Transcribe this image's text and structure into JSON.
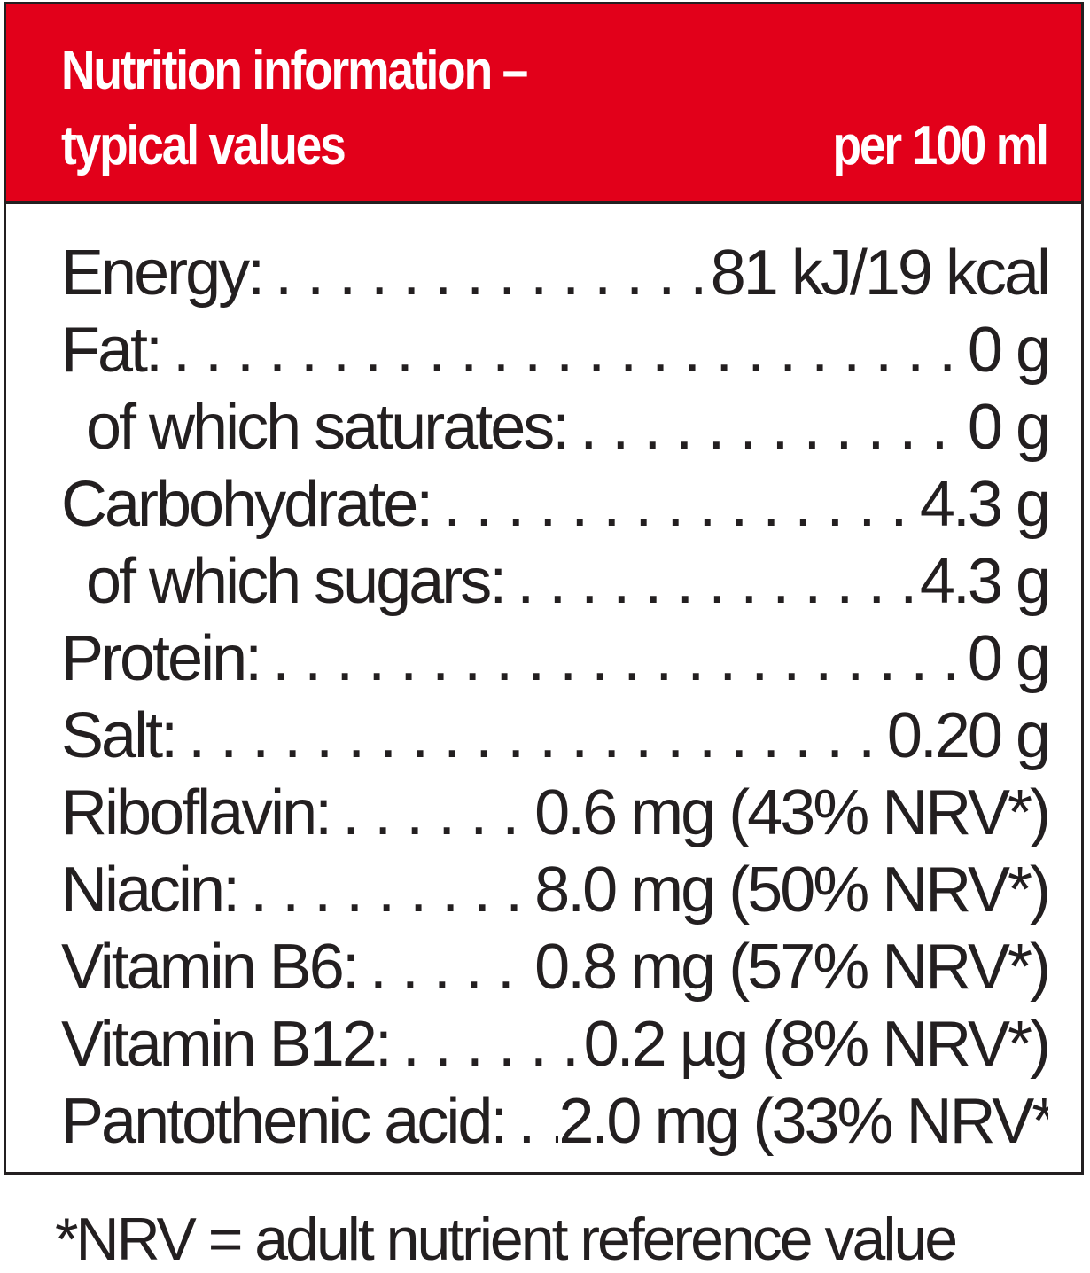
{
  "header": {
    "title_line1": "Nutrition information –",
    "title_line2": "typical values",
    "per": "per 100 ml"
  },
  "rows": [
    {
      "label": "Energy:",
      "value": "81 kJ/19 kcal"
    },
    {
      "label": "Fat:",
      "value": "0 g"
    },
    {
      "label": "of which saturates:",
      "value": "0 g"
    },
    {
      "label": "Carbohydrate:",
      "value": "4.3 g"
    },
    {
      "label": "of which sugars:",
      "value": "4.3 g"
    },
    {
      "label": "Protein:",
      "value": "0 g"
    },
    {
      "label": "Salt:",
      "value": "0.20 g"
    },
    {
      "label": "Riboflavin:",
      "value": "0.6 mg (43% NRV*)"
    },
    {
      "label": "Niacin:",
      "value": "8.0 mg (50% NRV*)"
    },
    {
      "label": "Vitamin B6:",
      "value": "0.8 mg (57% NRV*)"
    },
    {
      "label": "Vitamin B12:",
      "value": "0.2 µg (8% NRV*)"
    },
    {
      "label": "Pantothenic acid:",
      "value": "2.0 mg (33% NRV*)"
    }
  ],
  "footnote": "*NRV = adult nutrient reference value",
  "colors": {
    "header_background": "#e2001a",
    "header_text": "#ffffff",
    "body_text": "#231f20",
    "border": "#231f20"
  }
}
